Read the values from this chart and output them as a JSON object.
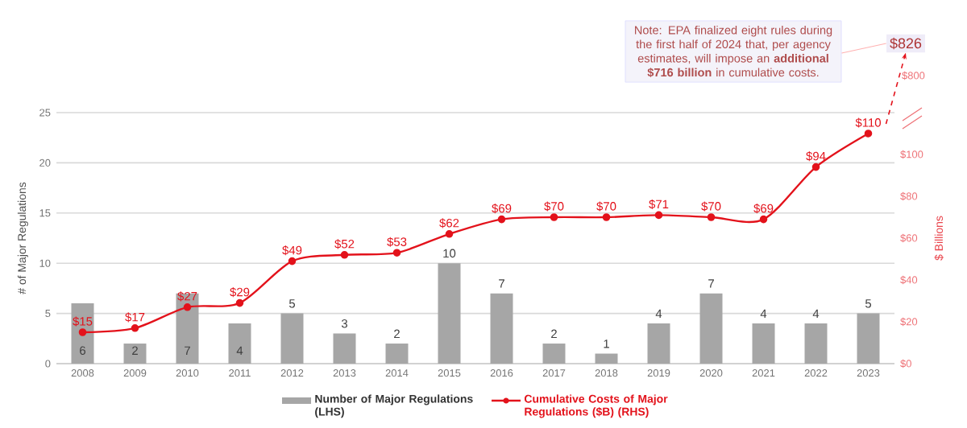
{
  "chart_data": {
    "type": "bar",
    "categories": [
      "2008",
      "2009",
      "2010",
      "2011",
      "2012",
      "2013",
      "2014",
      "2015",
      "2016",
      "2017",
      "2018",
      "2019",
      "2020",
      "2021",
      "2022",
      "2023"
    ],
    "ylabel": "# of Major Regulations",
    "y2label": "$ Billions",
    "ylim": [
      0,
      25
    ],
    "yticks": [
      0,
      5,
      10,
      15,
      20,
      25
    ],
    "y2lim": [
      0,
      120
    ],
    "y2ticks": [
      {
        "value": 0,
        "label": "$0"
      },
      {
        "value": 20,
        "label": "$20"
      },
      {
        "value": 40,
        "label": "$40"
      },
      {
        "value": 60,
        "label": "$60"
      },
      {
        "value": 80,
        "label": "$80"
      },
      {
        "value": 100,
        "label": "$100"
      }
    ],
    "grid": "y",
    "legend": "bottom",
    "series": [
      {
        "name": "Number of Major Regulations (LHS)",
        "color": "#a6a6a6",
        "values": [
          6,
          2,
          7,
          4,
          5,
          3,
          2,
          10,
          7,
          2,
          1,
          4,
          7,
          4,
          4,
          5
        ],
        "value_labels": [
          "6",
          "2",
          "7",
          "4",
          "5",
          "3",
          "2",
          "10",
          "7",
          "2",
          "1",
          "4",
          "7",
          "4",
          "4",
          "5"
        ]
      },
      {
        "name": "Cumulative Costs of Major Regulations ($B) (RHS)",
        "type": "line",
        "axis": "y2",
        "color": "#e3121b",
        "marker": "circle",
        "line_style": "solid",
        "values": [
          15,
          17,
          27,
          29,
          49,
          52,
          53,
          62,
          69,
          70,
          70,
          71,
          70,
          69,
          94,
          110
        ],
        "value_labels": [
          "$15",
          "$17",
          "$27",
          "$29",
          "$49",
          "$52",
          "$53",
          "$62",
          "$69",
          "$70",
          "$70",
          "$71",
          "$70",
          "$69",
          "$94",
          "$110"
        ]
      }
    ],
    "annotations": [
      "Note: EPA finalized eight rules during the first half of 2024 that, per agency estimates, will impose an **additional $716 billion** in cumulative costs.",
      "$826",
      "$800"
    ]
  }
}
